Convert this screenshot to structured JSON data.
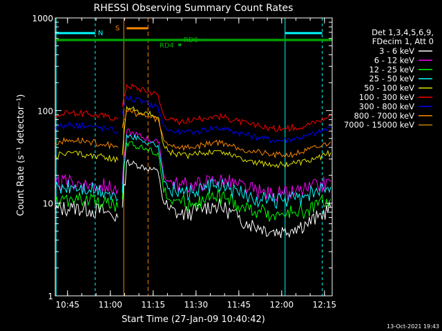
{
  "chart_data": {
    "type": "line",
    "title": "RHESSI Observing Summary Count Rates",
    "xlabel": "Start Time (27-Jan-09 10:40:42)",
    "ylabel": "Count Rate (s⁻¹ detector⁻¹)",
    "y_scale": "log",
    "ylim": [
      1,
      1000
    ],
    "xlim_minutes": [
      0,
      97
    ],
    "x_tick_labels": [
      "10:45",
      "11:00",
      "11:15",
      "11:30",
      "11:45",
      "12:00",
      "12:15"
    ],
    "y_tick_labels": [
      "1",
      "10",
      "100",
      "1000"
    ],
    "legend_header": [
      "Det 1,3,4,5,6,9,",
      "FDecim 1, Att 0"
    ],
    "legend_position": "right",
    "x_minutes": [
      0,
      6,
      12,
      18,
      22,
      23.5,
      25,
      36,
      36.6,
      38,
      40,
      44,
      48,
      52,
      56,
      60,
      64,
      68,
      72,
      76,
      80,
      84,
      88,
      92,
      96.5
    ],
    "series": [
      {
        "name": "3 - 6 keV",
        "color": "#ffffff",
        "values": [
          8.5,
          9,
          8.5,
          8,
          7,
          9,
          28,
          22,
          18,
          10,
          8.5,
          7.5,
          8,
          9,
          9.5,
          8.5,
          7,
          6,
          5.5,
          5,
          5,
          5.5,
          6,
          7,
          9
        ]
      },
      {
        "name": "6 - 12 keV",
        "color": "#ff00ff",
        "values": [
          16,
          17,
          16,
          15,
          14,
          16,
          60,
          45,
          40,
          20,
          17,
          15.5,
          15.5,
          16.5,
          18,
          17,
          15.5,
          14,
          13,
          12.5,
          12.5,
          13,
          14,
          15,
          17
        ]
      },
      {
        "name": "12 - 25 keV",
        "color": "#00ff00",
        "values": [
          10,
          11,
          10.5,
          10,
          9,
          11,
          45,
          35,
          28,
          13,
          11,
          10,
          10,
          10.5,
          11.5,
          11,
          9.5,
          8.5,
          8,
          7.5,
          7.5,
          8,
          8.5,
          9.5,
          11
        ]
      },
      {
        "name": "25 - 50 keV",
        "color": "#00ffff",
        "values": [
          14,
          15,
          14,
          13,
          11,
          13,
          55,
          42,
          34,
          17,
          14.5,
          13,
          13,
          14,
          15.5,
          14.5,
          13,
          12,
          11,
          10.5,
          10.5,
          11,
          12,
          13,
          15
        ]
      },
      {
        "name": "50 - 100 keV",
        "color": "#e6e600",
        "values": [
          33,
          35,
          33,
          31,
          29,
          33,
          110,
          85,
          70,
          42,
          36,
          33,
          33,
          35,
          37,
          35,
          32,
          29,
          27,
          26,
          26,
          27,
          28,
          31,
          35
        ]
      },
      {
        "name": "100 - 300 keV",
        "color": "#ff0000",
        "values": [
          90,
          95,
          92,
          87,
          82,
          110,
          190,
          150,
          120,
          90,
          80,
          76,
          78,
          83,
          88,
          84,
          77,
          71,
          67,
          64,
          64,
          66,
          70,
          77,
          88
        ]
      },
      {
        "name": "300 - 800 keV",
        "color": "#0000ff",
        "values": [
          67,
          70,
          68,
          64,
          60,
          90,
          140,
          110,
          95,
          68,
          61,
          58,
          58,
          62,
          66,
          63,
          58,
          54,
          51,
          48,
          48,
          50,
          53,
          58,
          66
        ]
      },
      {
        "name": "800 - 7000 keV",
        "color": "#ff8800",
        "values": [
          45,
          48,
          46,
          43,
          40,
          65,
          100,
          80,
          68,
          48,
          43,
          40,
          40,
          43,
          46,
          44,
          40,
          37,
          35,
          33,
          33,
          34,
          37,
          40,
          46
        ]
      },
      {
        "name": "7000 - 15000 keV",
        "color": "#c08000",
        "values": []
      }
    ],
    "annotations": [
      {
        "label": "N",
        "color": "#00ffff"
      },
      {
        "label": "S",
        "color": "#ff8800"
      },
      {
        "label": "RD0",
        "color": "#00b000"
      },
      {
        "label": "RD4",
        "color": "#00b000"
      }
    ],
    "footer_date": "13-Oct-2021 19:43"
  }
}
